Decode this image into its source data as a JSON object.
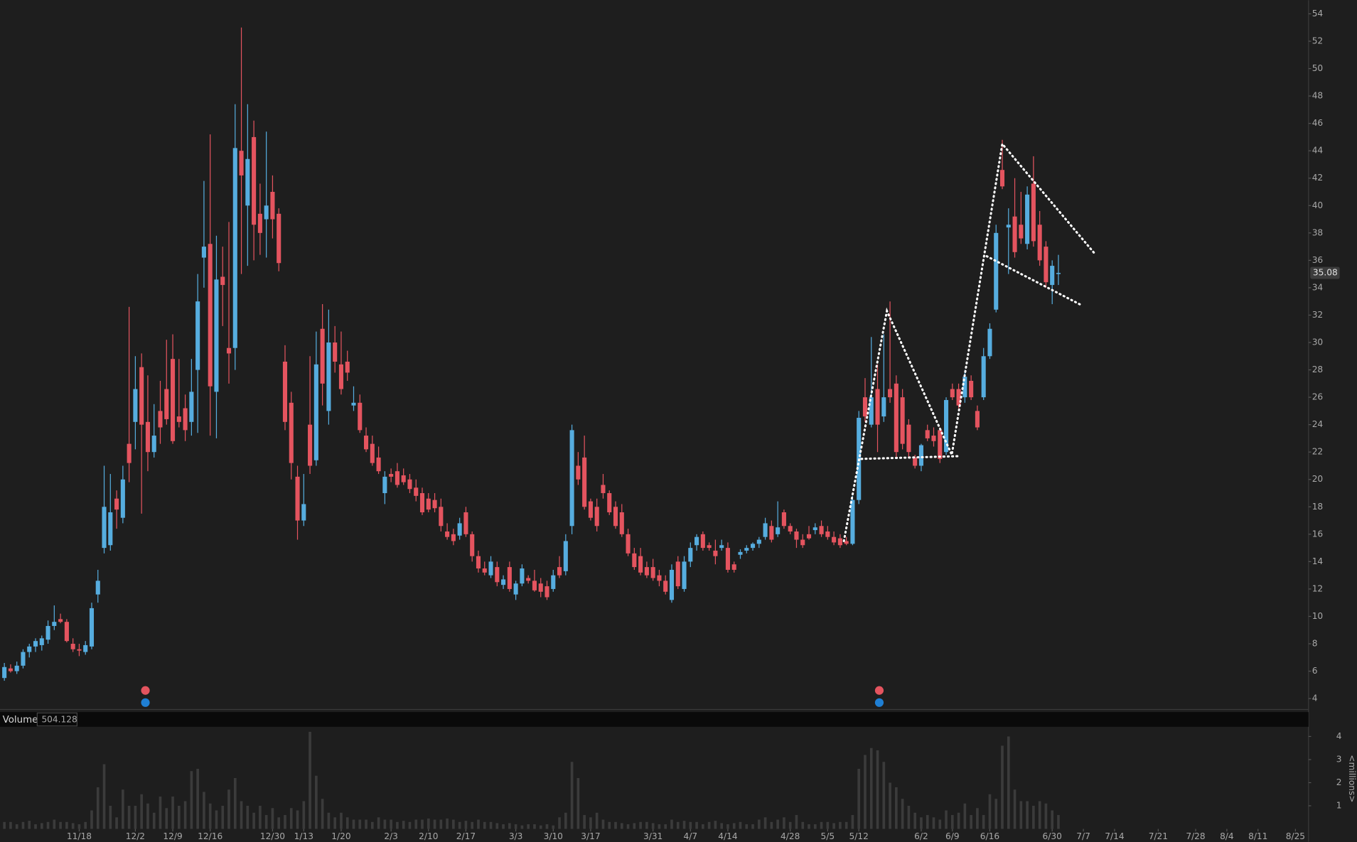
{
  "chart_data": {
    "type": "candlestick",
    "up_color": "#56addf",
    "down_color": "#e4545f",
    "xlim": [
      -0.7,
      209.1
    ],
    "xticks": [
      {
        "value": 12,
        "label": "11/18"
      },
      {
        "value": 21,
        "label": "12/2"
      },
      {
        "value": 27,
        "label": "12/9"
      },
      {
        "value": 33,
        "label": "12/16"
      },
      {
        "value": 43,
        "label": "12/30"
      },
      {
        "value": 48,
        "label": "1/13"
      },
      {
        "value": 54,
        "label": "1/20"
      },
      {
        "value": 62,
        "label": "2/3"
      },
      {
        "value": 68,
        "label": "2/10"
      },
      {
        "value": 74,
        "label": "2/17"
      },
      {
        "value": 82,
        "label": "3/3"
      },
      {
        "value": 88,
        "label": "3/10"
      },
      {
        "value": 94,
        "label": "3/17"
      },
      {
        "value": 104,
        "label": "3/31"
      },
      {
        "value": 110,
        "label": "4/7"
      },
      {
        "value": 116,
        "label": "4/14"
      },
      {
        "value": 126,
        "label": "4/28"
      },
      {
        "value": 132,
        "label": "5/5"
      },
      {
        "value": 137,
        "label": "5/12"
      },
      {
        "value": 147,
        "label": "6/2"
      },
      {
        "value": 152,
        "label": "6/9"
      },
      {
        "value": 158,
        "label": "6/16"
      },
      {
        "value": 168,
        "label": "6/30"
      },
      {
        "value": 173,
        "label": "7/7"
      },
      {
        "value": 178,
        "label": "7/14"
      },
      {
        "value": 185,
        "label": "7/21"
      },
      {
        "value": 191,
        "label": "7/28"
      },
      {
        "value": 196,
        "label": "8/4"
      },
      {
        "value": 201,
        "label": "8/11"
      },
      {
        "value": 207,
        "label": "8/25"
      }
    ],
    "ylim": [
      3.2,
      55
    ],
    "yticks": [
      4,
      6,
      8,
      10,
      12,
      14,
      16,
      18,
      20,
      22,
      24,
      26,
      28,
      30,
      32,
      34,
      36,
      38,
      40,
      42,
      44,
      46,
      48,
      50,
      52,
      54
    ],
    "last_price": 35.08,
    "ohlc": [
      [
        5.5,
        6.6,
        5.3,
        6.3
      ],
      [
        6.2,
        6.5,
        5.9,
        6.0
      ],
      [
        6.0,
        6.7,
        5.8,
        6.4
      ],
      [
        6.4,
        7.6,
        6.2,
        7.4
      ],
      [
        7.4,
        8.0,
        7.0,
        7.8
      ],
      [
        7.8,
        8.4,
        7.4,
        8.2
      ],
      [
        7.9,
        8.6,
        7.5,
        8.4
      ],
      [
        8.3,
        9.7,
        8.0,
        9.3
      ],
      [
        9.3,
        10.8,
        9.0,
        9.6
      ],
      [
        9.8,
        10.2,
        9.5,
        9.6
      ],
      [
        9.6,
        9.8,
        8.1,
        8.2
      ],
      [
        8.0,
        8.4,
        7.4,
        7.6
      ],
      [
        7.6,
        8.0,
        7.1,
        7.5
      ],
      [
        7.4,
        8.2,
        7.2,
        7.9
      ],
      [
        7.8,
        11.0,
        7.6,
        10.6
      ],
      [
        11.6,
        13.4,
        11.0,
        12.6
      ],
      [
        15.0,
        21.0,
        14.6,
        18.0
      ],
      [
        15.2,
        20.4,
        14.8,
        17.6
      ],
      [
        18.6,
        19.2,
        16.4,
        17.8
      ],
      [
        17.2,
        21.0,
        16.8,
        20.0
      ],
      [
        22.6,
        32.6,
        19.8,
        21.2
      ],
      [
        24.2,
        29.0,
        22.2,
        26.6
      ],
      [
        28.2,
        29.2,
        17.5,
        24.0
      ],
      [
        24.2,
        27.6,
        20.6,
        22.0
      ],
      [
        22.0,
        25.5,
        21.6,
        23.2
      ],
      [
        25.0,
        27.2,
        22.6,
        23.8
      ],
      [
        26.6,
        30.2,
        24.0,
        24.4
      ],
      [
        28.8,
        30.6,
        22.6,
        22.8
      ],
      [
        24.6,
        28.8,
        23.8,
        24.2
      ],
      [
        25.2,
        26.2,
        22.8,
        23.6
      ],
      [
        24.2,
        28.8,
        23.2,
        26.4
      ],
      [
        28.0,
        35.0,
        23.4,
        33.0
      ],
      [
        36.2,
        41.8,
        34.0,
        37.0
      ],
      [
        37.2,
        45.2,
        23.2,
        26.8
      ],
      [
        26.4,
        37.8,
        23.0,
        34.6
      ],
      [
        34.8,
        37.0,
        31.2,
        34.2
      ],
      [
        29.6,
        38.8,
        27.0,
        29.2
      ],
      [
        29.6,
        47.4,
        28.0,
        44.2
      ],
      [
        44.0,
        53.0,
        35.0,
        42.2
      ],
      [
        40.0,
        47.4,
        35.6,
        43.4
      ],
      [
        45.0,
        46.2,
        36.0,
        38.6
      ],
      [
        39.4,
        41.6,
        36.4,
        38.0
      ],
      [
        39.0,
        45.4,
        36.2,
        40.0
      ],
      [
        41.0,
        42.2,
        37.6,
        39.0
      ],
      [
        39.4,
        39.8,
        35.2,
        35.8
      ],
      [
        28.6,
        29.8,
        23.6,
        24.2
      ],
      [
        25.6,
        26.4,
        20.0,
        21.2
      ],
      [
        20.2,
        21.0,
        15.6,
        17.0
      ],
      [
        17.0,
        20.4,
        16.6,
        18.2
      ],
      [
        24.0,
        29.0,
        20.4,
        21.0
      ],
      [
        21.4,
        30.8,
        21.0,
        28.4
      ],
      [
        31.0,
        32.8,
        25.4,
        27.0
      ],
      [
        25.0,
        32.4,
        24.0,
        30.0
      ],
      [
        30.0,
        31.2,
        27.8,
        28.6
      ],
      [
        28.4,
        30.8,
        26.2,
        26.6
      ],
      [
        28.6,
        29.4,
        27.2,
        27.8
      ],
      [
        25.4,
        26.8,
        25.0,
        25.6
      ],
      [
        25.6,
        26.2,
        23.4,
        23.6
      ],
      [
        23.2,
        23.8,
        22.0,
        22.2
      ],
      [
        22.6,
        23.2,
        21.0,
        21.2
      ],
      [
        21.6,
        22.4,
        20.4,
        20.6
      ],
      [
        19.0,
        20.6,
        18.2,
        20.2
      ],
      [
        20.4,
        20.8,
        19.8,
        20.2
      ],
      [
        20.6,
        21.2,
        19.4,
        19.6
      ],
      [
        20.3,
        20.8,
        19.6,
        19.8
      ],
      [
        20.0,
        20.4,
        19.0,
        19.3
      ],
      [
        19.4,
        20.0,
        18.4,
        18.8
      ],
      [
        19.0,
        19.4,
        17.4,
        17.6
      ],
      [
        18.6,
        19.0,
        17.6,
        17.8
      ],
      [
        18.5,
        19.0,
        17.6,
        17.9
      ],
      [
        18.0,
        18.6,
        16.2,
        16.6
      ],
      [
        16.2,
        16.8,
        15.6,
        15.8
      ],
      [
        16.0,
        16.4,
        15.2,
        15.5
      ],
      [
        15.9,
        17.2,
        15.6,
        16.8
      ],
      [
        17.6,
        18.0,
        15.8,
        16.0
      ],
      [
        16.0,
        16.2,
        14.0,
        14.4
      ],
      [
        14.4,
        14.8,
        13.2,
        13.5
      ],
      [
        13.5,
        14.0,
        13.0,
        13.2
      ],
      [
        13.0,
        14.4,
        12.8,
        14.0
      ],
      [
        13.6,
        14.0,
        12.2,
        12.5
      ],
      [
        12.3,
        13.0,
        12.0,
        12.7
      ],
      [
        13.6,
        14.0,
        11.8,
        12.0
      ],
      [
        11.6,
        12.6,
        11.2,
        12.4
      ],
      [
        12.4,
        13.8,
        12.2,
        13.5
      ],
      [
        12.8,
        13.0,
        12.4,
        12.6
      ],
      [
        12.6,
        13.4,
        11.8,
        11.9
      ],
      [
        12.4,
        12.8,
        11.4,
        11.8
      ],
      [
        12.2,
        12.6,
        11.2,
        11.4
      ],
      [
        12.0,
        13.4,
        11.8,
        13.0
      ],
      [
        13.6,
        14.4,
        12.8,
        13.0
      ],
      [
        13.3,
        16.0,
        13.0,
        15.5
      ],
      [
        16.6,
        24.0,
        16.0,
        23.6
      ],
      [
        21.0,
        22.0,
        19.6,
        20.0
      ],
      [
        21.6,
        23.2,
        17.8,
        18.0
      ],
      [
        18.4,
        18.6,
        17.0,
        17.2
      ],
      [
        18.0,
        18.6,
        16.2,
        16.6
      ],
      [
        19.6,
        20.4,
        18.6,
        19.0
      ],
      [
        19.0,
        19.2,
        17.4,
        17.6
      ],
      [
        18.0,
        18.4,
        16.4,
        16.6
      ],
      [
        17.6,
        18.2,
        15.8,
        16.0
      ],
      [
        16.0,
        16.4,
        14.4,
        14.6
      ],
      [
        14.6,
        15.0,
        13.4,
        13.6
      ],
      [
        14.4,
        15.0,
        13.0,
        13.2
      ],
      [
        13.6,
        14.0,
        12.8,
        13.0
      ],
      [
        13.6,
        14.2,
        12.6,
        12.8
      ],
      [
        13.0,
        13.4,
        12.2,
        12.6
      ],
      [
        12.6,
        13.0,
        11.6,
        11.8
      ],
      [
        11.2,
        13.8,
        11.0,
        13.4
      ],
      [
        14.0,
        14.4,
        12.0,
        12.2
      ],
      [
        12.0,
        14.4,
        11.8,
        14.0
      ],
      [
        14.0,
        15.4,
        13.6,
        15.0
      ],
      [
        15.2,
        16.0,
        14.8,
        15.8
      ],
      [
        16.0,
        16.2,
        14.8,
        15.0
      ],
      [
        15.2,
        15.4,
        14.8,
        15.0
      ],
      [
        14.8,
        15.6,
        13.8,
        14.4
      ],
      [
        15.0,
        15.6,
        14.8,
        15.2
      ],
      [
        15.0,
        15.4,
        13.2,
        13.4
      ],
      [
        13.8,
        14.0,
        13.2,
        13.4
      ],
      [
        14.5,
        14.9,
        14.2,
        14.7
      ],
      [
        14.8,
        15.2,
        14.6,
        15.0
      ],
      [
        15.0,
        15.4,
        14.8,
        15.3
      ],
      [
        15.3,
        15.8,
        15.0,
        15.6
      ],
      [
        15.8,
        17.2,
        15.6,
        16.8
      ],
      [
        16.6,
        17.0,
        15.4,
        15.6
      ],
      [
        16.0,
        18.4,
        15.8,
        16.5
      ],
      [
        17.6,
        17.8,
        16.4,
        16.6
      ],
      [
        16.6,
        16.8,
        16.0,
        16.2
      ],
      [
        16.2,
        16.4,
        15.0,
        15.6
      ],
      [
        15.6,
        16.0,
        15.0,
        15.2
      ],
      [
        16.0,
        16.6,
        15.6,
        15.7
      ],
      [
        16.3,
        16.8,
        16.0,
        16.5
      ],
      [
        16.6,
        17.0,
        15.8,
        16.0
      ],
      [
        16.2,
        16.6,
        15.6,
        15.8
      ],
      [
        15.8,
        16.2,
        15.2,
        15.4
      ],
      [
        15.7,
        16.0,
        15.0,
        15.2
      ],
      [
        15.5,
        15.8,
        15.2,
        15.3
      ],
      [
        15.3,
        18.8,
        15.2,
        18.5
      ],
      [
        18.5,
        25.0,
        18.2,
        24.5
      ],
      [
        26.0,
        27.4,
        24.2,
        24.6
      ],
      [
        24.0,
        30.4,
        23.8,
        26.0
      ],
      [
        26.6,
        28.4,
        22.0,
        24.0
      ],
      [
        24.6,
        30.6,
        24.2,
        26.0
      ],
      [
        26.6,
        33.0,
        25.6,
        26.0
      ],
      [
        27.0,
        27.6,
        21.6,
        22.0
      ],
      [
        26.0,
        26.6,
        22.2,
        22.6
      ],
      [
        24.0,
        24.4,
        21.6,
        22.0
      ],
      [
        21.6,
        21.8,
        20.8,
        21.0
      ],
      [
        21.0,
        22.6,
        20.6,
        22.5
      ],
      [
        23.6,
        24.0,
        22.8,
        23.0
      ],
      [
        23.2,
        23.8,
        22.4,
        22.8
      ],
      [
        23.6,
        23.8,
        21.2,
        21.5
      ],
      [
        22.0,
        26.0,
        21.8,
        25.8
      ],
      [
        26.6,
        27.0,
        25.8,
        26.0
      ],
      [
        26.6,
        27.0,
        25.2,
        25.4
      ],
      [
        26.0,
        28.0,
        25.6,
        27.5
      ],
      [
        27.2,
        27.6,
        25.8,
        26.0
      ],
      [
        25.0,
        25.4,
        23.6,
        23.8
      ],
      [
        26.0,
        29.6,
        25.8,
        29.0
      ],
      [
        29.0,
        31.4,
        28.8,
        31.0
      ],
      [
        32.4,
        38.6,
        32.2,
        38.0
      ],
      [
        42.6,
        44.8,
        41.2,
        41.4
      ],
      [
        38.4,
        39.8,
        35.0,
        38.6
      ],
      [
        39.2,
        42.0,
        36.2,
        36.6
      ],
      [
        38.6,
        41.0,
        37.2,
        37.6
      ],
      [
        37.2,
        41.4,
        36.8,
        40.8
      ],
      [
        41.6,
        43.6,
        37.0,
        37.4
      ],
      [
        38.6,
        39.6,
        35.6,
        36.0
      ],
      [
        37.0,
        37.4,
        34.0,
        34.4
      ],
      [
        34.2,
        36.0,
        32.8,
        35.6
      ],
      [
        35.0,
        36.4,
        34.2,
        35.08
      ]
    ],
    "trendlines": [
      {
        "color": "#ffffff",
        "points": [
          [
            134.6,
            15.5
          ],
          [
            141.5,
            32.3
          ],
          [
            151.9,
            21.8
          ],
          [
            160.0,
            44.5
          ],
          [
            174.8,
            36.5
          ]
        ]
      },
      {
        "color": "#ffffff",
        "points": [
          [
            137.4,
            21.5
          ],
          [
            153.0,
            21.7
          ]
        ]
      },
      {
        "color": "#ffffff",
        "points": [
          [
            157.5,
            36.3
          ],
          [
            172.8,
            32.7
          ]
        ]
      }
    ],
    "volume": {
      "title": "Volume",
      "current": 504.128,
      "label": "<millions>",
      "color": "#3b3b3b",
      "ylim": [
        0,
        4.38
      ],
      "yticks": [
        1,
        2,
        3,
        4
      ],
      "values": [
        0.3,
        0.3,
        0.2,
        0.3,
        0.35,
        0.2,
        0.25,
        0.3,
        0.4,
        0.3,
        0.3,
        0.25,
        0.2,
        0.3,
        0.8,
        1.8,
        2.8,
        1.0,
        0.5,
        1.7,
        1.0,
        1.0,
        1.5,
        1.1,
        0.7,
        1.4,
        0.9,
        1.4,
        1.0,
        1.2,
        2.5,
        2.6,
        1.6,
        1.1,
        0.8,
        1.0,
        1.7,
        2.2,
        1.2,
        1.0,
        0.7,
        1.0,
        0.6,
        0.9,
        0.5,
        0.6,
        0.9,
        0.8,
        1.2,
        4.2,
        2.3,
        1.3,
        0.7,
        0.5,
        0.7,
        0.5,
        0.4,
        0.4,
        0.4,
        0.3,
        0.5,
        0.4,
        0.4,
        0.3,
        0.35,
        0.3,
        0.4,
        0.4,
        0.45,
        0.4,
        0.4,
        0.45,
        0.4,
        0.3,
        0.35,
        0.3,
        0.4,
        0.3,
        0.3,
        0.25,
        0.2,
        0.25,
        0.2,
        0.15,
        0.2,
        0.2,
        0.15,
        0.2,
        0.15,
        0.5,
        0.7,
        2.9,
        2.2,
        0.6,
        0.5,
        0.7,
        0.4,
        0.3,
        0.3,
        0.25,
        0.2,
        0.25,
        0.3,
        0.3,
        0.25,
        0.2,
        0.2,
        0.4,
        0.3,
        0.35,
        0.3,
        0.3,
        0.2,
        0.3,
        0.35,
        0.25,
        0.2,
        0.25,
        0.3,
        0.2,
        0.2,
        0.4,
        0.5,
        0.3,
        0.4,
        0.5,
        0.3,
        0.6,
        0.3,
        0.2,
        0.2,
        0.3,
        0.3,
        0.25,
        0.3,
        0.3,
        0.6,
        2.6,
        3.2,
        3.5,
        3.4,
        2.9,
        2.0,
        1.8,
        1.3,
        1.0,
        0.7,
        0.5,
        0.6,
        0.5,
        0.4,
        0.8,
        0.6,
        0.7,
        1.1,
        0.6,
        0.9,
        0.6,
        1.5,
        1.3,
        3.6,
        4.0,
        1.7,
        1.2,
        1.2,
        1.0,
        1.2,
        1.1,
        0.8,
        0.6
      ]
    }
  }
}
